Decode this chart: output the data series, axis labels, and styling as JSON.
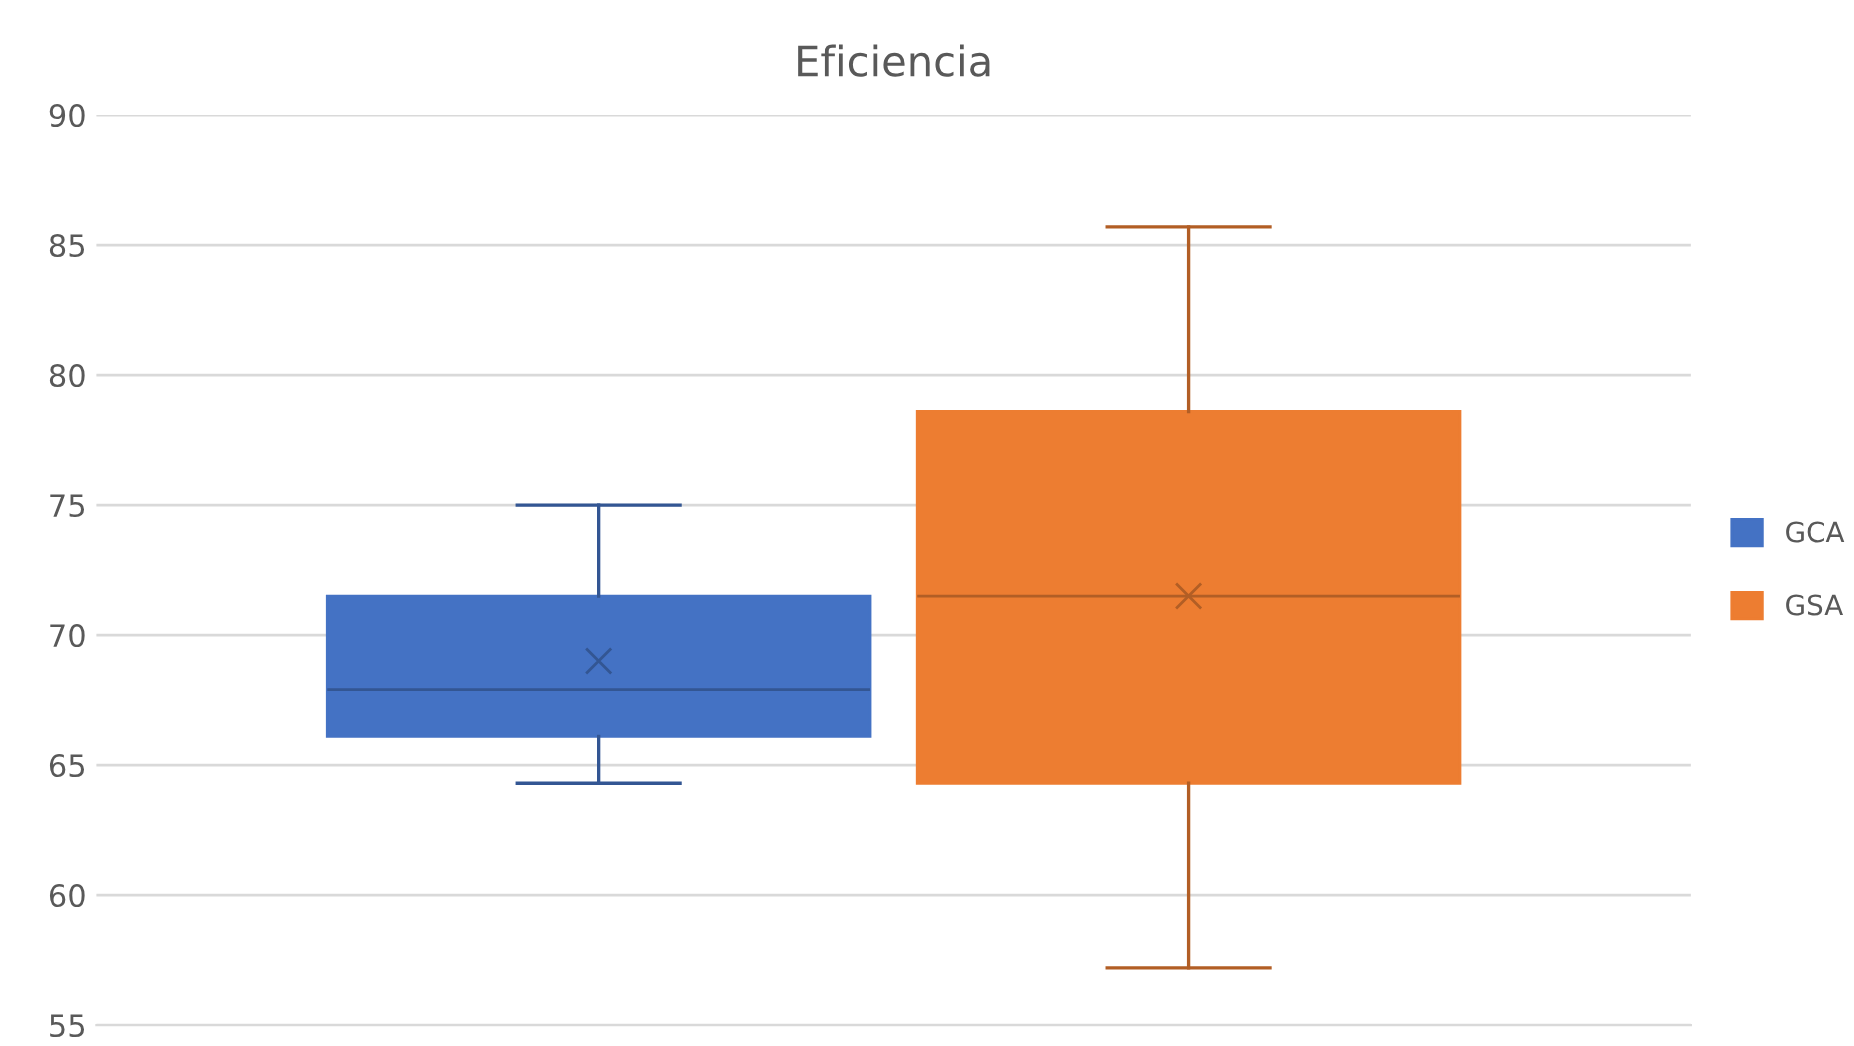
{
  "chart_data": {
    "type": "box",
    "title": "Eficiencia",
    "categories": [
      null
    ],
    "series": [
      {
        "name": "GCA",
        "color": "#4472c4",
        "boxes": [
          {
            "low": 64.3,
            "q1": 66.1,
            "median": 67.9,
            "q3": 71.5,
            "high": 75.0,
            "mean": 69.0
          }
        ]
      },
      {
        "name": "GSA",
        "color": "#ed7d31",
        "boxes": [
          {
            "low": 57.2,
            "q1": 64.3,
            "median": 71.5,
            "q3": 78.6,
            "high": 85.7,
            "mean": 71.5
          }
        ]
      }
    ],
    "ylim": [
      55,
      90
    ],
    "yticks": [
      55,
      60,
      65,
      70,
      75,
      80,
      85,
      90
    ],
    "grid": "y",
    "legend": "right",
    "tick_labels": "y"
  }
}
